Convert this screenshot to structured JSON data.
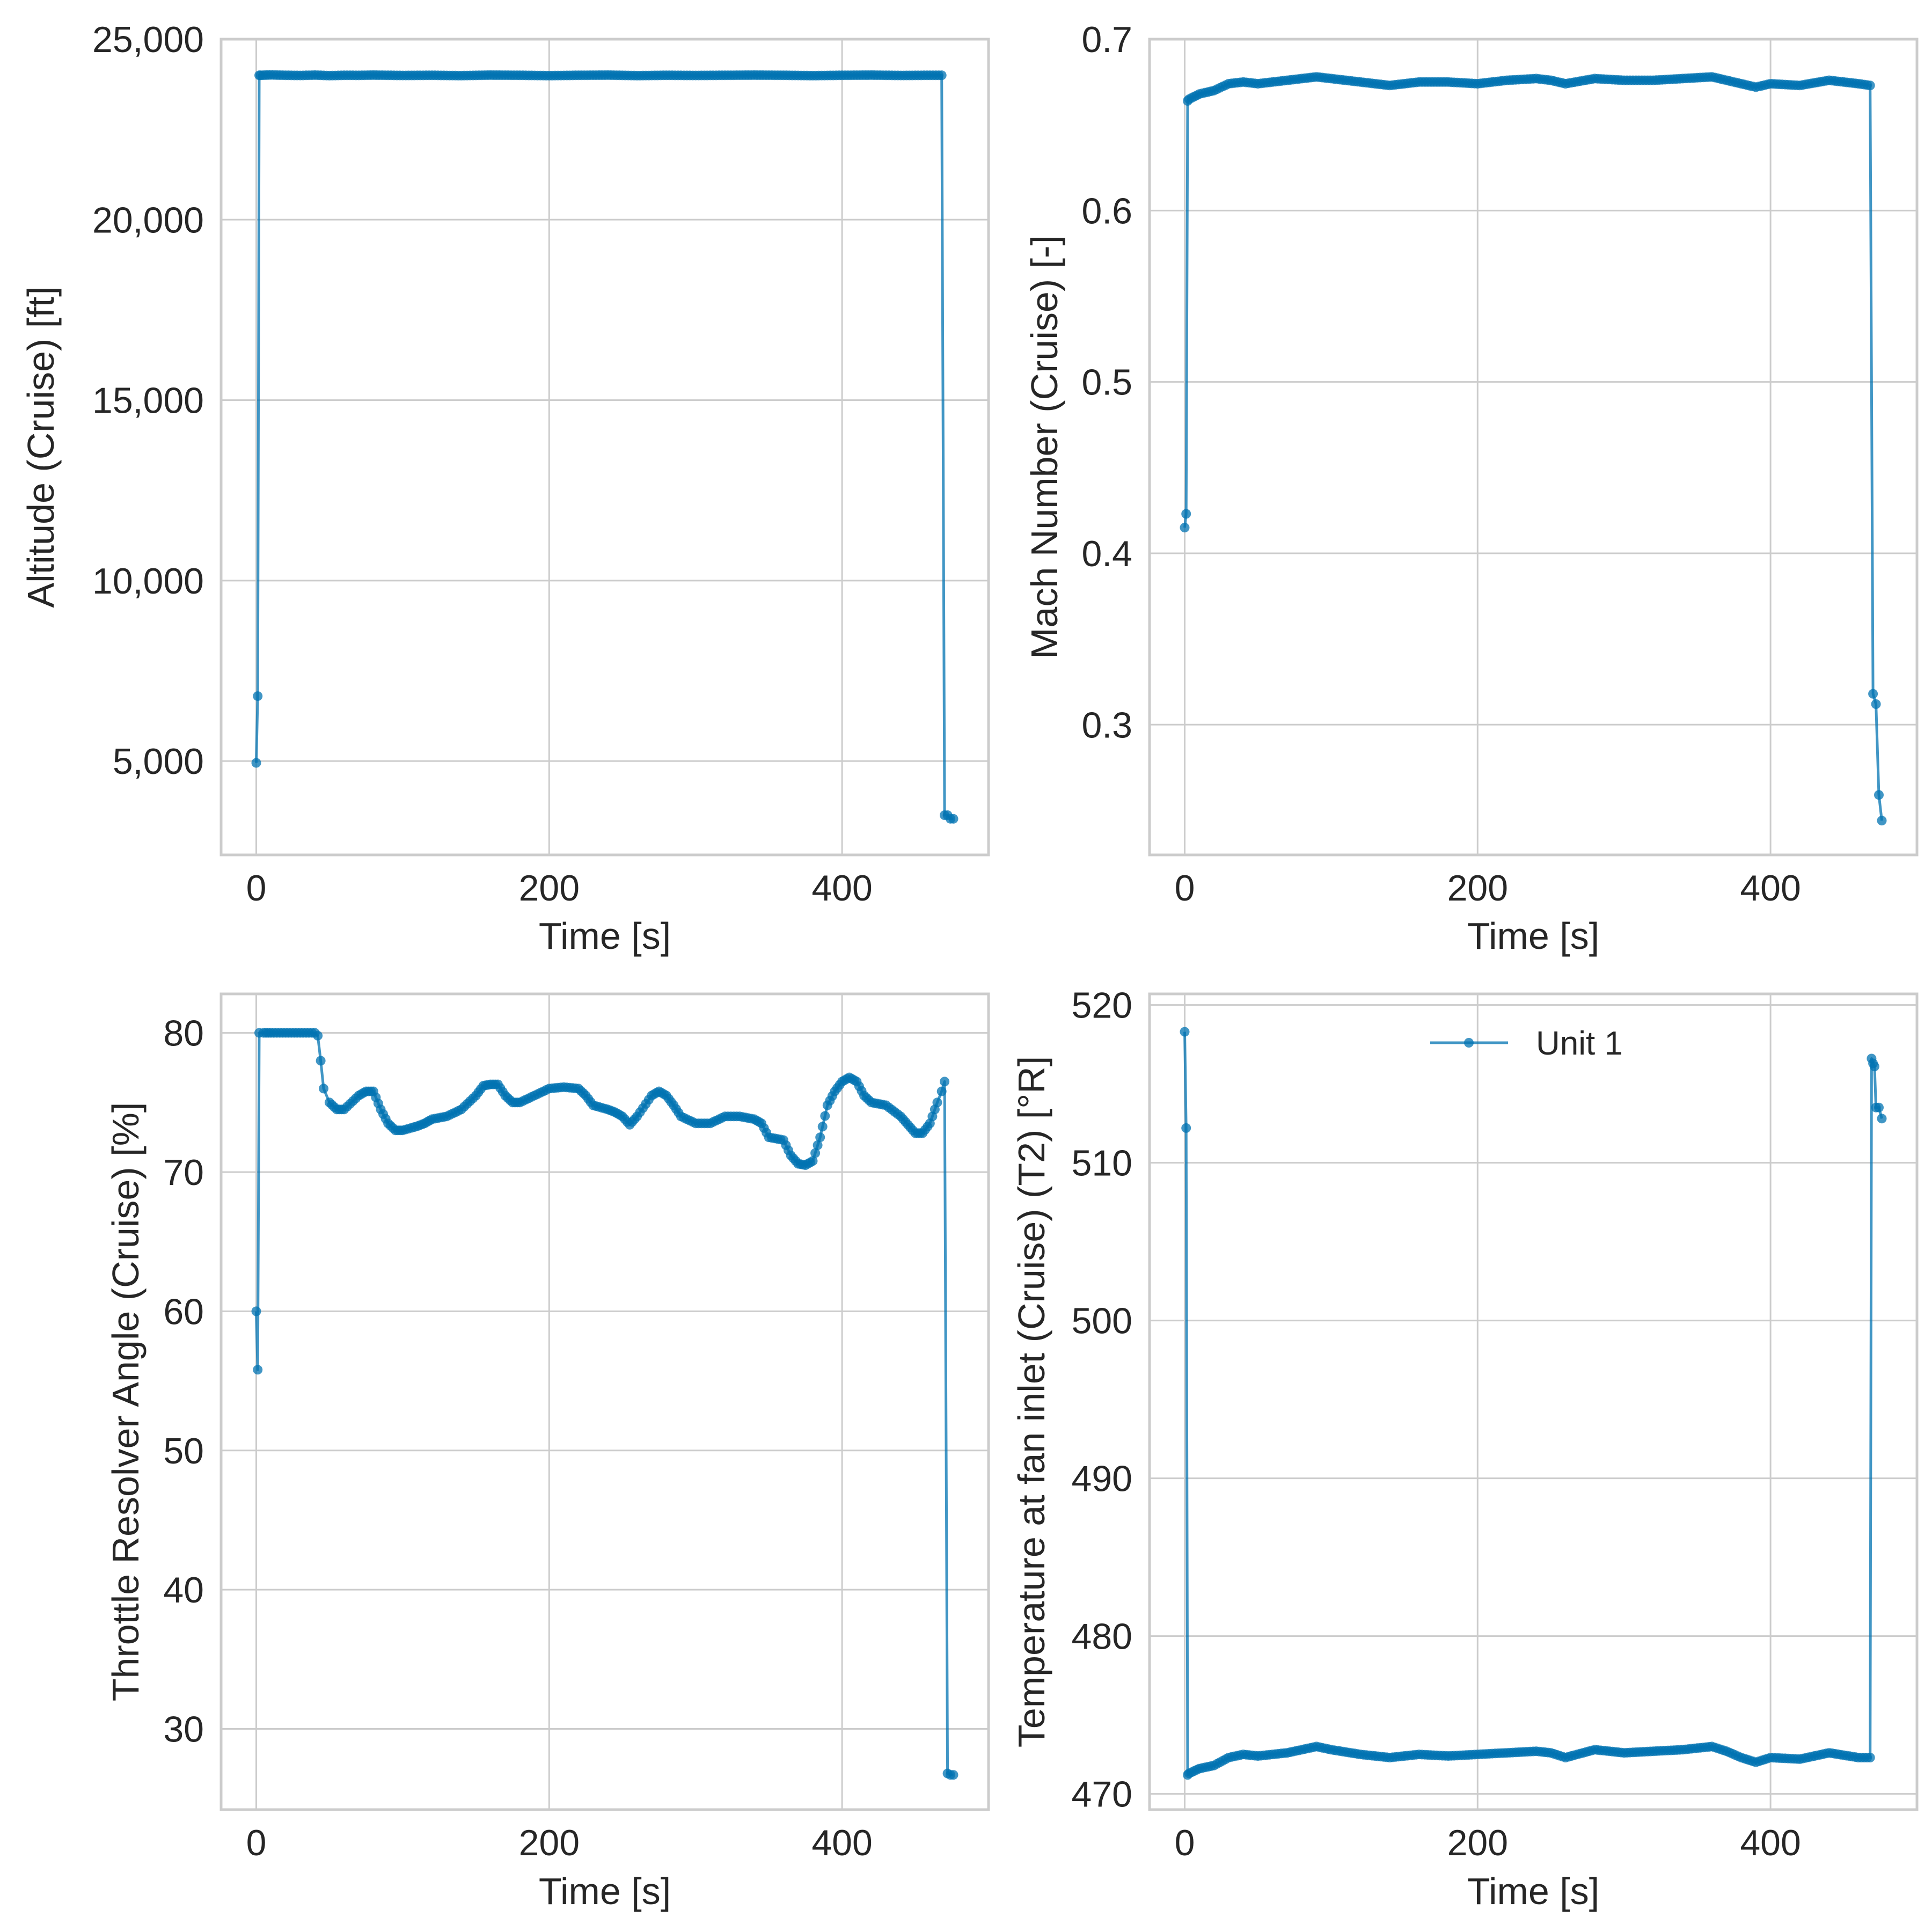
{
  "figure": {
    "colors": {
      "series": "#0173b2",
      "grid": "#cccccc",
      "frame": "#cccccc",
      "text": "#262626",
      "background": "#ffffff"
    }
  },
  "chart_data": [
    {
      "id": "altitude",
      "type": "line",
      "title": "",
      "xlabel": "Time [s]",
      "ylabel": "Altitude (Cruise) [ft]",
      "xlim": [
        -24,
        500
      ],
      "ylim": [
        2400,
        25000
      ],
      "xticks": [
        0,
        200,
        400
      ],
      "xtick_labels": [
        "0",
        "200",
        "400"
      ],
      "yticks": [
        5000,
        10000,
        15000,
        20000,
        25000
      ],
      "ytick_labels": [
        "5,000",
        "10,000",
        "15,000",
        "20,000",
        "25,000"
      ],
      "grid": true,
      "series": [
        {
          "name": "Unit 1",
          "x": [
            0,
            1,
            2,
            3,
            10,
            20,
            30,
            40,
            50,
            60,
            70,
            80,
            90,
            100,
            120,
            140,
            160,
            180,
            200,
            220,
            240,
            260,
            280,
            300,
            320,
            340,
            360,
            380,
            400,
            420,
            440,
            460,
            468,
            470,
            472,
            474,
            476
          ],
          "y": [
            4950,
            6800,
            24000,
            24000,
            24010,
            24000,
            23995,
            24005,
            23990,
            24000,
            23998,
            24005,
            24000,
            23995,
            24000,
            23990,
            24005,
            24000,
            23990,
            24000,
            24005,
            23990,
            24000,
            23995,
            24000,
            24005,
            24000,
            23990,
            24000,
            24005,
            23995,
            24000,
            24000,
            3500,
            3500,
            3400,
            3400
          ]
        }
      ]
    },
    {
      "id": "mach",
      "type": "line",
      "title": "",
      "xlabel": "Time [s]",
      "ylabel": "Mach Number (Cruise) [-]",
      "xlim": [
        -24,
        500
      ],
      "ylim": [
        0.224,
        0.7
      ],
      "xticks": [
        0,
        200,
        400
      ],
      "xtick_labels": [
        "0",
        "200",
        "400"
      ],
      "yticks": [
        0.3,
        0.4,
        0.5,
        0.6,
        0.7
      ],
      "ytick_labels": [
        "0.3",
        "0.4",
        "0.5",
        "0.6",
        "0.7"
      ],
      "grid": true,
      "series": [
        {
          "name": "Unit 1",
          "x": [
            0,
            1,
            2,
            3,
            10,
            20,
            30,
            40,
            50,
            60,
            70,
            80,
            90,
            100,
            120,
            140,
            160,
            180,
            200,
            220,
            240,
            250,
            260,
            280,
            300,
            320,
            340,
            360,
            370,
            380,
            390,
            400,
            420,
            440,
            460,
            468,
            470,
            472,
            474,
            476
          ],
          "y": [
            0.415,
            0.423,
            0.664,
            0.665,
            0.668,
            0.67,
            0.674,
            0.675,
            0.674,
            0.675,
            0.676,
            0.677,
            0.678,
            0.677,
            0.675,
            0.673,
            0.675,
            0.675,
            0.674,
            0.676,
            0.677,
            0.676,
            0.674,
            0.677,
            0.676,
            0.676,
            0.677,
            0.678,
            0.676,
            0.674,
            0.672,
            0.674,
            0.673,
            0.676,
            0.674,
            0.673,
            0.318,
            0.312,
            0.259,
            0.244
          ]
        }
      ]
    },
    {
      "id": "throttle",
      "type": "line",
      "title": "",
      "xlabel": "Time [s]",
      "ylabel": "Throttle Resolver Angle (Cruise) [%]",
      "xlim": [
        -24,
        500
      ],
      "ylim": [
        24.2,
        82.8
      ],
      "xticks": [
        0,
        200,
        400
      ],
      "xtick_labels": [
        "0",
        "200",
        "400"
      ],
      "yticks": [
        30,
        40,
        50,
        60,
        70,
        80
      ],
      "ytick_labels": [
        "30",
        "40",
        "50",
        "60",
        "70",
        "80"
      ],
      "grid": true,
      "series": [
        {
          "name": "Unit 1",
          "x": [
            0,
            1,
            2,
            5,
            10,
            20,
            30,
            40,
            42,
            44,
            46,
            50,
            55,
            60,
            70,
            75,
            80,
            85,
            90,
            95,
            100,
            110,
            115,
            120,
            130,
            140,
            150,
            155,
            160,
            165,
            170,
            175,
            180,
            190,
            200,
            210,
            220,
            225,
            230,
            240,
            245,
            250,
            255,
            260,
            270,
            275,
            280,
            285,
            290,
            300,
            310,
            320,
            330,
            340,
            345,
            350,
            360,
            365,
            370,
            375,
            380,
            385,
            390,
            395,
            400,
            405,
            410,
            415,
            420,
            430,
            440,
            445,
            450,
            455,
            460,
            465,
            468,
            470,
            472,
            474,
            476
          ],
          "y": [
            60,
            55.8,
            80,
            80,
            80,
            80,
            80,
            80,
            79.8,
            78,
            76,
            75,
            74.5,
            74.5,
            75.5,
            75.8,
            75.8,
            74.5,
            73.5,
            73,
            73,
            73.3,
            73.5,
            73.8,
            74,
            74.5,
            75.5,
            76.2,
            76.3,
            76.3,
            75.5,
            75,
            75,
            75.5,
            76,
            76.1,
            76,
            75.5,
            74.8,
            74.5,
            74.3,
            74,
            73.4,
            74,
            75.5,
            75.8,
            75.5,
            74.8,
            74,
            73.5,
            73.5,
            74,
            74,
            73.8,
            73.5,
            72.5,
            72.3,
            71.2,
            70.6,
            70.5,
            70.8,
            72.5,
            74.8,
            75.8,
            76.5,
            76.8,
            76.5,
            75.5,
            75,
            74.8,
            74,
            73.4,
            72.8,
            72.8,
            73.5,
            75,
            75.8,
            76.5,
            26.8,
            26.7,
            26.7
          ]
        }
      ]
    },
    {
      "id": "temperature",
      "type": "line",
      "title": "",
      "xlabel": "Time [s]",
      "ylabel": "Temperature at fan inlet (Cruise) (T2) [°R]",
      "xlim": [
        -24,
        500
      ],
      "ylim": [
        469,
        520.7
      ],
      "xticks": [
        0,
        200,
        400
      ],
      "xtick_labels": [
        "0",
        "200",
        "400"
      ],
      "yticks": [
        470,
        480,
        490,
        500,
        510,
        520
      ],
      "ytick_labels": [
        "470",
        "480",
        "490",
        "500",
        "510",
        "520"
      ],
      "grid": true,
      "legend": {
        "labels": [
          "Unit 1"
        ],
        "placement": "top-center"
      },
      "series": [
        {
          "name": "Unit 1",
          "x": [
            0,
            1,
            2,
            3,
            10,
            20,
            30,
            40,
            50,
            60,
            70,
            80,
            90,
            100,
            120,
            140,
            160,
            180,
            200,
            220,
            240,
            250,
            260,
            280,
            300,
            320,
            340,
            360,
            370,
            380,
            390,
            400,
            420,
            440,
            460,
            468,
            469,
            470,
            471,
            472,
            474,
            476
          ],
          "y": [
            518.3,
            512.2,
            471.2,
            471.3,
            471.6,
            471.8,
            472.3,
            472.5,
            472.4,
            472.5,
            472.6,
            472.8,
            473,
            472.8,
            472.5,
            472.3,
            472.5,
            472.4,
            472.5,
            472.6,
            472.7,
            472.6,
            472.3,
            472.8,
            472.6,
            472.7,
            472.8,
            473,
            472.7,
            472.3,
            472,
            472.3,
            472.2,
            472.6,
            472.3,
            472.3,
            516.6,
            516.3,
            516.1,
            513.5,
            513.5,
            512.8
          ]
        }
      ]
    }
  ]
}
